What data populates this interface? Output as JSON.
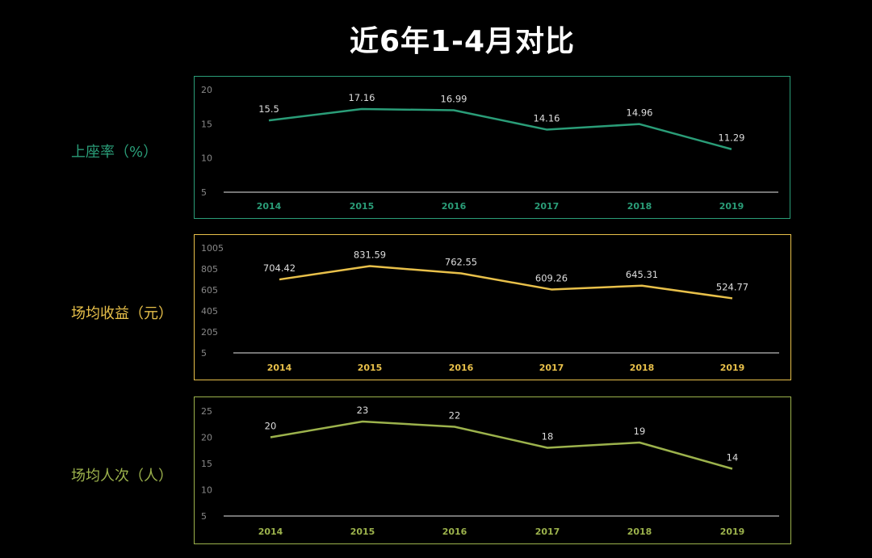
{
  "title": "近6年1-4月对比",
  "chart_data": [
    {
      "type": "line",
      "title": "上座率（%）",
      "color": "#2a9d78",
      "categories": [
        "2014",
        "2015",
        "2016",
        "2017",
        "2018",
        "2019"
      ],
      "values": [
        15.5,
        17.16,
        16.99,
        14.16,
        14.96,
        11.29
      ],
      "value_labels": [
        "15.5",
        "17.16",
        "16.99",
        "14.16",
        "14.96",
        "11.29"
      ],
      "yticks": [
        "20",
        "15",
        "10",
        "5"
      ],
      "ylim": [
        5,
        20
      ]
    },
    {
      "type": "line",
      "title": "场均收益（元）",
      "color": "#e8c04a",
      "categories": [
        "2014",
        "2015",
        "2016",
        "2017",
        "2018",
        "2019"
      ],
      "values": [
        704.42,
        831.59,
        762.55,
        609.26,
        645.31,
        524.77
      ],
      "value_labels": [
        "704.42",
        "831.59",
        "762.55",
        "609.26",
        "645.31",
        "524.77"
      ],
      "yticks": [
        "1005",
        "805",
        "605",
        "405",
        "205",
        "5"
      ],
      "ylim": [
        5,
        1005
      ]
    },
    {
      "type": "line",
      "title": "场均人次（人）",
      "color": "#9cb24c",
      "categories": [
        "2014",
        "2015",
        "2016",
        "2017",
        "2018",
        "2019"
      ],
      "values": [
        20,
        23,
        22,
        18,
        19,
        14
      ],
      "value_labels": [
        "20",
        "23",
        "22",
        "18",
        "19",
        "14"
      ],
      "yticks": [
        "25",
        "20",
        "15",
        "10",
        "5"
      ],
      "ylim": [
        5,
        25
      ]
    }
  ]
}
